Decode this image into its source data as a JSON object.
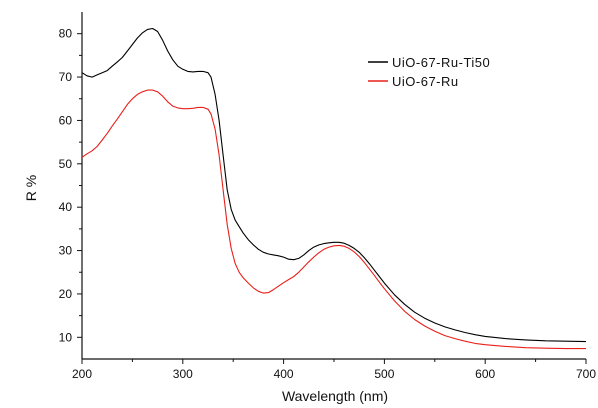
{
  "chart_data": {
    "type": "line",
    "title": "",
    "xlabel": "Wavelength (nm)",
    "ylabel": "R %",
    "xlim": [
      200,
      700
    ],
    "ylim": [
      5,
      85
    ],
    "x_ticks": [
      200,
      300,
      400,
      500,
      600,
      700
    ],
    "y_ticks": [
      10,
      20,
      30,
      40,
      50,
      60,
      70,
      80
    ],
    "grid": false,
    "legend_position": "top-right",
    "series": [
      {
        "name": "UiO-67-Ru-Ti50",
        "color": "#000000",
        "points": [
          [
            200,
            71
          ],
          [
            205,
            70.3
          ],
          [
            210,
            70
          ],
          [
            215,
            70.5
          ],
          [
            220,
            71
          ],
          [
            225,
            71.5
          ],
          [
            230,
            72.5
          ],
          [
            235,
            73.5
          ],
          [
            240,
            74.5
          ],
          [
            245,
            76
          ],
          [
            250,
            77.5
          ],
          [
            255,
            79
          ],
          [
            260,
            80.2
          ],
          [
            265,
            81
          ],
          [
            270,
            81.2
          ],
          [
            275,
            80.5
          ],
          [
            280,
            78.5
          ],
          [
            285,
            76
          ],
          [
            290,
            74
          ],
          [
            295,
            72.5
          ],
          [
            300,
            71.8
          ],
          [
            305,
            71.3
          ],
          [
            310,
            71.2
          ],
          [
            315,
            71.3
          ],
          [
            320,
            71.3
          ],
          [
            325,
            71
          ],
          [
            328,
            70
          ],
          [
            332,
            66
          ],
          [
            336,
            60
          ],
          [
            340,
            52
          ],
          [
            344,
            44
          ],
          [
            348,
            39.5
          ],
          [
            352,
            37
          ],
          [
            356,
            35.5
          ],
          [
            360,
            34
          ],
          [
            365,
            32.5
          ],
          [
            370,
            31.3
          ],
          [
            375,
            30.3
          ],
          [
            380,
            29.6
          ],
          [
            385,
            29.2
          ],
          [
            390,
            29
          ],
          [
            395,
            28.8
          ],
          [
            400,
            28.5
          ],
          [
            405,
            28
          ],
          [
            410,
            27.9
          ],
          [
            415,
            28.2
          ],
          [
            420,
            29
          ],
          [
            425,
            30
          ],
          [
            430,
            30.8
          ],
          [
            435,
            31.3
          ],
          [
            440,
            31.6
          ],
          [
            445,
            31.8
          ],
          [
            450,
            31.9
          ],
          [
            455,
            31.9
          ],
          [
            460,
            31.7
          ],
          [
            465,
            31.2
          ],
          [
            470,
            30.5
          ],
          [
            475,
            29.6
          ],
          [
            480,
            28.4
          ],
          [
            485,
            27
          ],
          [
            490,
            25.5
          ],
          [
            495,
            24
          ],
          [
            500,
            22.5
          ],
          [
            510,
            19.8
          ],
          [
            520,
            17.6
          ],
          [
            530,
            15.8
          ],
          [
            540,
            14.4
          ],
          [
            550,
            13.3
          ],
          [
            560,
            12.4
          ],
          [
            570,
            11.7
          ],
          [
            580,
            11.1
          ],
          [
            590,
            10.6
          ],
          [
            600,
            10.2
          ],
          [
            620,
            9.7
          ],
          [
            640,
            9.4
          ],
          [
            660,
            9.2
          ],
          [
            680,
            9.1
          ],
          [
            700,
            9
          ]
        ]
      },
      {
        "name": "UiO-67-Ru",
        "color": "#e8201a",
        "points": [
          [
            200,
            51.5
          ],
          [
            205,
            52.3
          ],
          [
            210,
            53
          ],
          [
            215,
            54
          ],
          [
            220,
            55.5
          ],
          [
            225,
            57
          ],
          [
            230,
            58.7
          ],
          [
            235,
            60.3
          ],
          [
            240,
            62
          ],
          [
            245,
            63.7
          ],
          [
            250,
            65
          ],
          [
            255,
            66
          ],
          [
            260,
            66.6
          ],
          [
            265,
            67
          ],
          [
            270,
            67
          ],
          [
            275,
            66.6
          ],
          [
            280,
            65.6
          ],
          [
            285,
            64.3
          ],
          [
            290,
            63.3
          ],
          [
            295,
            62.9
          ],
          [
            300,
            62.7
          ],
          [
            305,
            62.7
          ],
          [
            310,
            62.8
          ],
          [
            315,
            63
          ],
          [
            320,
            63
          ],
          [
            325,
            62.6
          ],
          [
            328,
            61.5
          ],
          [
            332,
            58
          ],
          [
            336,
            52
          ],
          [
            340,
            44
          ],
          [
            344,
            36
          ],
          [
            348,
            30.5
          ],
          [
            352,
            27
          ],
          [
            356,
            25
          ],
          [
            360,
            23.7
          ],
          [
            365,
            22.5
          ],
          [
            370,
            21.4
          ],
          [
            375,
            20.6
          ],
          [
            380,
            20.2
          ],
          [
            385,
            20.3
          ],
          [
            390,
            21
          ],
          [
            395,
            21.8
          ],
          [
            400,
            22.6
          ],
          [
            405,
            23.3
          ],
          [
            410,
            24
          ],
          [
            415,
            25
          ],
          [
            420,
            26.2
          ],
          [
            425,
            27.4
          ],
          [
            430,
            28.5
          ],
          [
            435,
            29.5
          ],
          [
            440,
            30.3
          ],
          [
            445,
            30.8
          ],
          [
            450,
            31.1
          ],
          [
            455,
            31.2
          ],
          [
            460,
            31
          ],
          [
            465,
            30.5
          ],
          [
            470,
            29.7
          ],
          [
            475,
            28.6
          ],
          [
            480,
            27.3
          ],
          [
            485,
            25.8
          ],
          [
            490,
            24.3
          ],
          [
            495,
            22.7
          ],
          [
            500,
            21.2
          ],
          [
            510,
            18.4
          ],
          [
            520,
            16
          ],
          [
            530,
            14.1
          ],
          [
            540,
            12.6
          ],
          [
            550,
            11.4
          ],
          [
            560,
            10.4
          ],
          [
            570,
            9.7
          ],
          [
            580,
            9.1
          ],
          [
            590,
            8.6
          ],
          [
            600,
            8.3
          ],
          [
            620,
            7.9
          ],
          [
            640,
            7.6
          ],
          [
            660,
            7.5
          ],
          [
            680,
            7.4
          ],
          [
            700,
            7.4
          ]
        ]
      }
    ]
  }
}
